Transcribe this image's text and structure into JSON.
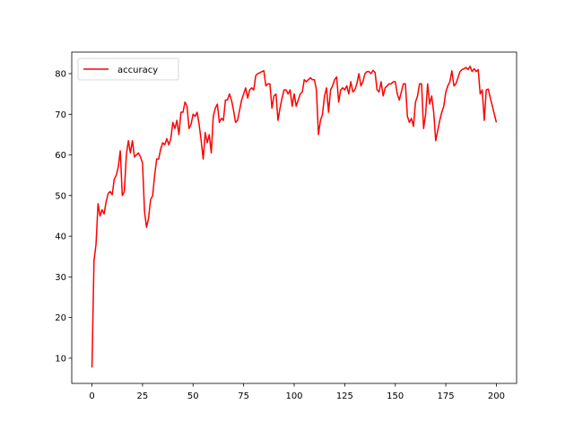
{
  "chart_data": {
    "type": "line",
    "x": [
      0,
      1,
      2,
      3,
      4,
      5,
      6,
      7,
      8,
      9,
      10,
      11,
      12,
      13,
      14,
      15,
      16,
      17,
      18,
      19,
      20,
      21,
      22,
      23,
      24,
      25,
      26,
      27,
      28,
      29,
      30,
      31,
      32,
      33,
      34,
      35,
      36,
      37,
      38,
      39,
      40,
      41,
      42,
      43,
      44,
      45,
      46,
      47,
      48,
      49,
      50,
      51,
      52,
      53,
      54,
      55,
      56,
      57,
      58,
      59,
      60,
      61,
      62,
      63,
      64,
      65,
      66,
      67,
      68,
      69,
      70,
      71,
      72,
      73,
      74,
      75,
      76,
      77,
      78,
      79,
      80,
      81,
      82,
      83,
      84,
      85,
      86,
      87,
      88,
      89,
      90,
      91,
      92,
      93,
      94,
      95,
      96,
      97,
      98,
      99,
      100,
      101,
      102,
      103,
      104,
      105,
      106,
      107,
      108,
      109,
      110,
      111,
      112,
      113,
      114,
      115,
      116,
      117,
      118,
      119,
      120,
      121,
      122,
      123,
      124,
      125,
      126,
      127,
      128,
      129,
      130,
      131,
      132,
      133,
      134,
      135,
      136,
      137,
      138,
      139,
      140,
      141,
      142,
      143,
      144,
      145,
      146,
      147,
      148,
      149,
      150,
      151,
      152,
      153,
      154,
      155,
      156,
      157,
      158,
      159,
      160,
      161,
      162,
      163,
      164,
      165,
      166,
      167,
      168,
      169,
      170,
      171,
      172,
      173,
      174,
      175,
      176,
      177,
      178,
      179,
      180,
      181,
      182,
      183,
      184,
      185,
      186,
      187,
      188,
      189,
      190,
      191,
      192,
      193,
      194,
      195,
      196,
      197,
      198,
      199,
      200
    ],
    "series": [
      {
        "name": "accuracy",
        "color": "#ff0000",
        "values": [
          7.7,
          34,
          38,
          48,
          45,
          46.5,
          45.5,
          48.5,
          50.5,
          51,
          50.2,
          54,
          55,
          57,
          61,
          50,
          51,
          60,
          63.5,
          60.5,
          63.5,
          59.5,
          60,
          60.5,
          59.5,
          58,
          46,
          42.2,
          44.5,
          49,
          50,
          55,
          59,
          59,
          61.5,
          63,
          62.5,
          64,
          62.5,
          64,
          68,
          66.5,
          68.5,
          65,
          70.5,
          70.5,
          73,
          72,
          66.5,
          67.5,
          70,
          69.5,
          70.5,
          67.5,
          63.5,
          59,
          65.5,
          63,
          65,
          60.5,
          69.5,
          71.5,
          72.5,
          68,
          69,
          68.5,
          73.5,
          73.5,
          75,
          73.5,
          71,
          68,
          68.5,
          71,
          73.5,
          75,
          76.5,
          74,
          76,
          76.5,
          76,
          79.5,
          80,
          80.2,
          80.5,
          80.7,
          77,
          77.5,
          77.5,
          71.5,
          74.5,
          75,
          68.5,
          71.5,
          74,
          76,
          76,
          75,
          76,
          72,
          75,
          72,
          73.5,
          75,
          75.5,
          78.5,
          78,
          78.5,
          79,
          78.5,
          78.5,
          76,
          65,
          68.5,
          70,
          74.5,
          76.5,
          70.5,
          76,
          77,
          78.5,
          79.2,
          73,
          76,
          76.5,
          76,
          77,
          75,
          78,
          75.5,
          76,
          77.5,
          80,
          77,
          78,
          80,
          80.5,
          80.5,
          80,
          80.8,
          80.3,
          76,
          75.5,
          78,
          74.5,
          76.5,
          77,
          77.5,
          77.5,
          78,
          78,
          75,
          73.5,
          75.5,
          77.5,
          77.5,
          69.5,
          68,
          69,
          67,
          73,
          74.5,
          77.5,
          77.5,
          66.5,
          70,
          77.5,
          72.5,
          74.5,
          70.5,
          63.5,
          66,
          68.5,
          70.5,
          72,
          75.5,
          77,
          78,
          80.7,
          77,
          77.5,
          79,
          80.5,
          81,
          81.2,
          81.5,
          81,
          81.8,
          80.5,
          81.2,
          80.5,
          81,
          75,
          76,
          68.5,
          76,
          76.2,
          74,
          72,
          70,
          68
        ]
      }
    ],
    "xlim": [
      -10,
      210
    ],
    "ylim": [
      3.8,
      85.3
    ],
    "xticks": [
      0,
      25,
      50,
      75,
      100,
      125,
      150,
      175,
      200
    ],
    "yticks": [
      10,
      20,
      30,
      40,
      50,
      60,
      70,
      80
    ],
    "legend": "upper left"
  }
}
